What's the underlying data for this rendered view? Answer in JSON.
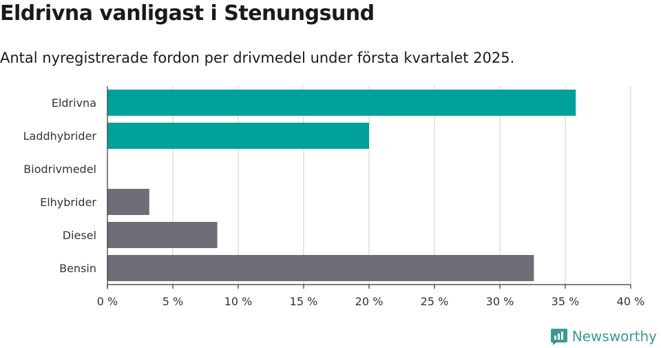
{
  "header": {
    "title": "Eldrivna vanligast i Stenungsund",
    "subtitle": "Antal nyregistrerade fordon per drivmedel under första kvartalet 2025."
  },
  "brand": {
    "name": "Newsworthy",
    "icon": "newsworthy-logo-icon",
    "color": "#3a9a92"
  },
  "colors": {
    "highlight": "#00a19a",
    "default": "#6e6d75",
    "grid": "#dddddd",
    "axis": "#333333"
  },
  "chart_data": {
    "type": "bar",
    "orientation": "horizontal",
    "categories": [
      "Eldrivna",
      "Laddhybrider",
      "Biodrivmedel",
      "Elhybrider",
      "Diesel",
      "Bensin"
    ],
    "values": [
      35.8,
      20.0,
      0,
      3.2,
      8.4,
      32.6
    ],
    "highlighted": [
      true,
      true,
      false,
      false,
      false,
      false
    ],
    "xlim": [
      0,
      40
    ],
    "xticks": [
      0,
      5,
      10,
      15,
      20,
      25,
      30,
      35,
      40
    ],
    "xtick_labels": [
      "0 %",
      "5 %",
      "10 %",
      "15 %",
      "20 %",
      "25 %",
      "30 %",
      "35 %",
      "40 %"
    ],
    "grid": true
  }
}
